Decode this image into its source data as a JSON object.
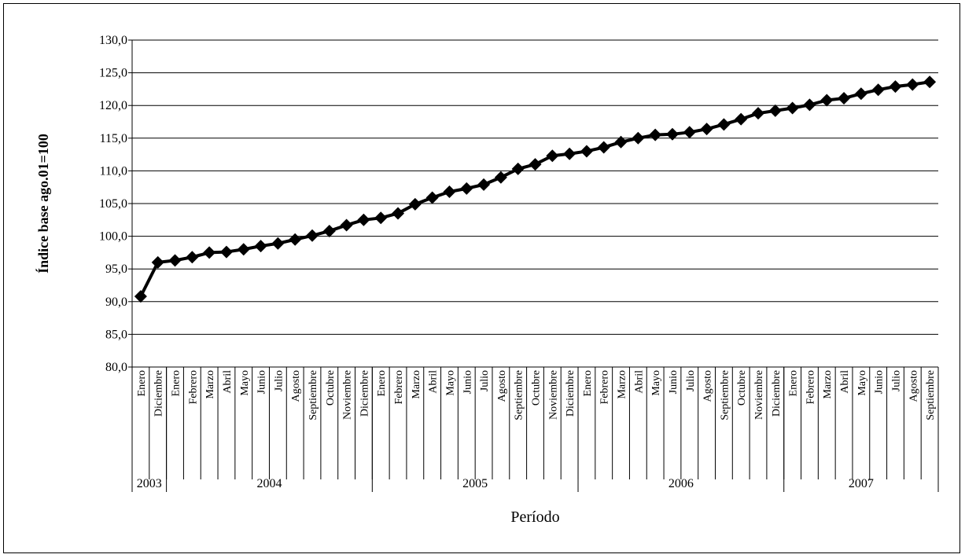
{
  "chart_data": {
    "type": "line",
    "title": "",
    "xlabel": "Período",
    "ylabel": "Índice base ago.01=100",
    "ylim": [
      80,
      130
    ],
    "ystep": 5,
    "yticks": [
      "80,0",
      "85,0",
      "90,0",
      "95,0",
      "100,0",
      "105,0",
      "110,0",
      "115,0",
      "120,0",
      "125,0",
      "130,0"
    ],
    "grid": true,
    "legend": "none",
    "line_color": "#000000",
    "marker": "diamond",
    "years": [
      {
        "label": "2003",
        "count": 2
      },
      {
        "label": "2004",
        "count": 12
      },
      {
        "label": "2005",
        "count": 12
      },
      {
        "label": "2006",
        "count": 12
      },
      {
        "label": "2007",
        "count": 9
      }
    ],
    "categories": [
      "Enero",
      "Diciembre",
      "Enero",
      "Febrero",
      "Marzo",
      "Abril",
      "Mayo",
      "Junio",
      "Julio",
      "Agosto",
      "Septiembre",
      "Octubre",
      "Noviembre",
      "Diciembre",
      "Enero",
      "Febrero",
      "Marzo",
      "Abril",
      "Mayo",
      "Junio",
      "Julio",
      "Agosto",
      "Septiembre",
      "Octubre",
      "Noviembre",
      "Diciembre",
      "Enero",
      "Febrero",
      "Marzo",
      "Abril",
      "Mayo",
      "Junio",
      "Julio",
      "Agosto",
      "Septiembre",
      "Octubre",
      "Noviembre",
      "Diciembre",
      "Enero",
      "Febrero",
      "Marzo",
      "Abril",
      "Mayo",
      "Junio",
      "Julio",
      "Agosto",
      "Septiembre"
    ],
    "values": [
      90.8,
      96.0,
      96.3,
      96.8,
      97.5,
      97.6,
      98.0,
      98.5,
      98.9,
      99.5,
      100.1,
      100.8,
      101.7,
      102.5,
      102.8,
      103.5,
      104.9,
      105.9,
      106.8,
      107.3,
      107.9,
      109.0,
      110.3,
      111.0,
      112.3,
      112.6,
      113.0,
      113.6,
      114.4,
      115.0,
      115.5,
      115.6,
      115.9,
      116.4,
      117.1,
      117.9,
      118.8,
      119.2,
      119.6,
      120.1,
      120.8,
      121.1,
      121.8,
      122.4,
      122.9,
      123.2,
      123.6
    ]
  }
}
